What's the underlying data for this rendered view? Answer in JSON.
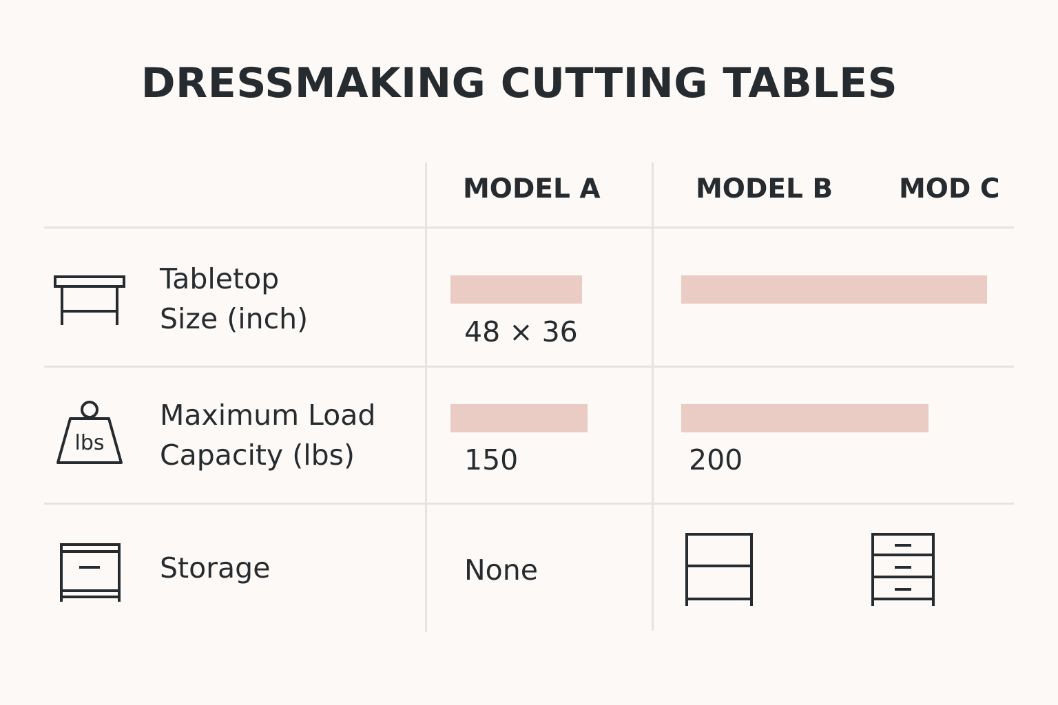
{
  "title": "DRESSMAKING CUTTING TABLES",
  "columns": [
    "MODEL A",
    "MODEL B",
    "MOD C"
  ],
  "rows": [
    {
      "icon": "table-icon",
      "label_line1": "Tabletop",
      "label_line2": "Size (inch)",
      "model_a_value": "48 × 36",
      "model_a_bar": 0.43,
      "model_b_bar": 1.0
    },
    {
      "icon": "weight-icon",
      "icon_text": "lbs",
      "label_line1": "Maximum Load",
      "label_line2": "Capacity (lbs)",
      "model_a_value": "150",
      "model_b_value": "200",
      "model_a_bar": 150,
      "model_b_bar": 200
    },
    {
      "icon": "cabinet-icon",
      "label_line1": "Storage",
      "model_a_value": "None",
      "model_b_icon": "shelf-icon",
      "model_c_icon": "drawers-icon"
    }
  ],
  "colors": {
    "background": "#fcf9f6",
    "text": "#262b2f",
    "bar": "#eaccc4",
    "divider": "#e6e3e0"
  }
}
